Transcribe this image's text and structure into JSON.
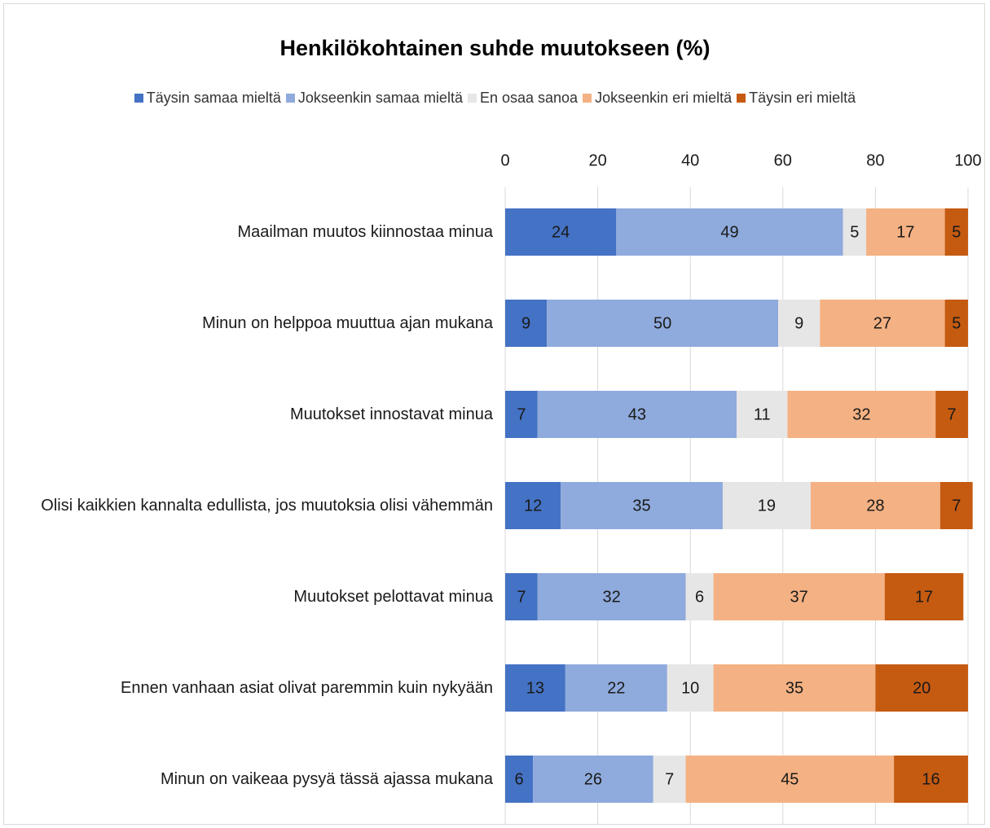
{
  "chart_data": {
    "type": "stacked-bar-horizontal",
    "title": "Henkilökohtainen suhde muutokseen (%)",
    "categories": [
      "Maailman muutos kiinnostaa minua",
      "Minun on helppoa muuttua ajan mukana",
      "Muutokset innostavat minua",
      "Olisi kaikkien kannalta edullista, jos muutoksia olisi vähemmän",
      "Muutokset pelottavat minua",
      "Ennen vanhaan asiat olivat paremmin kuin nykyään",
      "Minun on vaikeaa pysyä tässä ajassa mukana"
    ],
    "series": [
      {
        "name": "Täysin samaa mieltä",
        "color": "#4472c4",
        "values": [
          24,
          9,
          7,
          12,
          7,
          13,
          6
        ]
      },
      {
        "name": "Jokseenkin samaa mieltä",
        "color": "#8faadc",
        "values": [
          49,
          50,
          43,
          35,
          32,
          22,
          26
        ]
      },
      {
        "name": "En osaa sanoa",
        "color": "#e7e6e6",
        "values": [
          5,
          9,
          11,
          19,
          6,
          10,
          7
        ]
      },
      {
        "name": "Jokseenkin eri mieltä",
        "color": "#f4b183",
        "values": [
          17,
          27,
          32,
          28,
          37,
          35,
          45
        ]
      },
      {
        "name": "Täysin eri mieltä",
        "color": "#c55a11",
        "values": [
          5,
          5,
          7,
          7,
          17,
          20,
          16
        ]
      }
    ],
    "xlim": [
      0,
      100
    ],
    "xticks": [
      0,
      20,
      40,
      60,
      80,
      100
    ],
    "grid": true,
    "legend": "top"
  }
}
